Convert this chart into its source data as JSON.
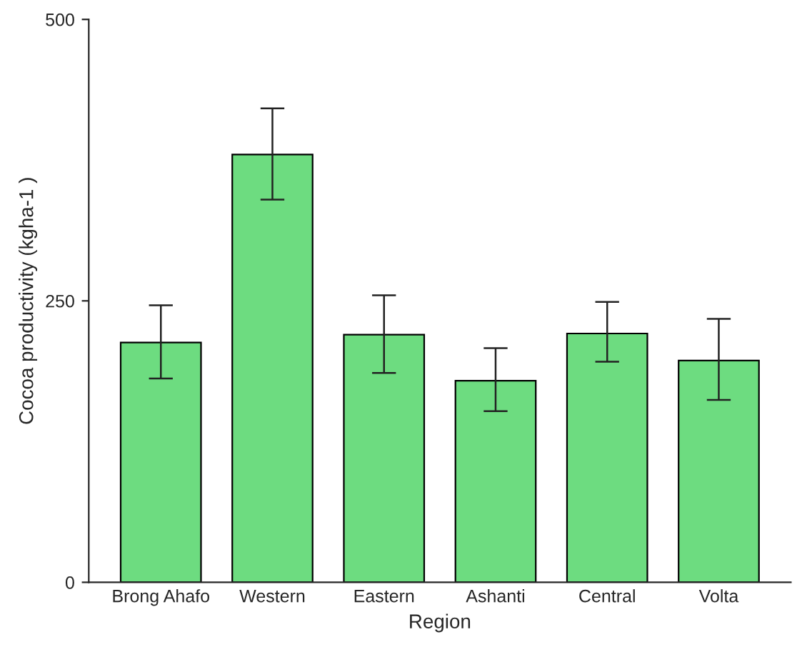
{
  "chart_data": {
    "type": "bar",
    "xlabel": "Region",
    "ylabel": "Cocoa productivity (kgha-1 )",
    "categories": [
      "Brong Ahafo",
      "Western",
      "Eastern",
      "Ashanti",
      "Central",
      "Volta"
    ],
    "values": [
      213,
      380,
      220,
      179,
      221,
      197
    ],
    "errors": [
      [
        181,
        246
      ],
      [
        340,
        421
      ],
      [
        186,
        255
      ],
      [
        152,
        208
      ],
      [
        196,
        249
      ],
      [
        162,
        234
      ]
    ],
    "color": "#6ddc80",
    "ylim": [
      0,
      500
    ],
    "yticks": [
      0,
      250,
      500
    ]
  }
}
